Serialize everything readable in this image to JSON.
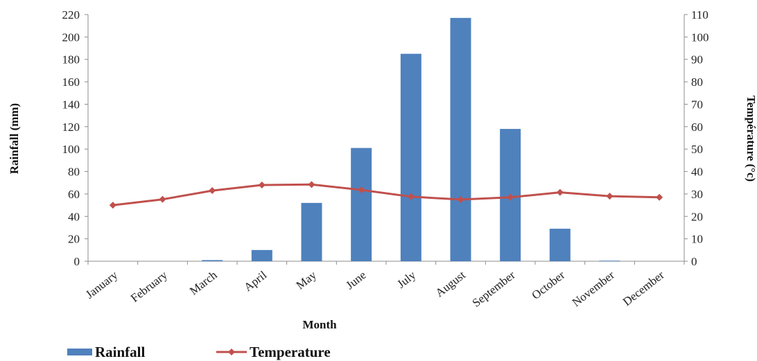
{
  "chart_data": {
    "type": "bar+line",
    "xlabel": "Month",
    "categories": [
      "January",
      "February",
      "March",
      "April",
      "May",
      "June",
      "July",
      "August",
      "September",
      "October",
      "November",
      "December"
    ],
    "y_left": {
      "label": "Rainfall (mm)",
      "min": 0,
      "max": 220,
      "step": 20
    },
    "y_right": {
      "label": "Température (°c)",
      "min": 0,
      "max": 110,
      "step": 10
    },
    "series": [
      {
        "name": "Rainfall",
        "type": "bar",
        "axis": "left",
        "color": "#4f81bd",
        "values": [
          0,
          0,
          1,
          10,
          52,
          101,
          185,
          217,
          118,
          29,
          0.5,
          0
        ]
      },
      {
        "name": "Temperature",
        "type": "line",
        "axis": "right",
        "color": "#c0504d",
        "marker": "diamond",
        "values": [
          25,
          27.6,
          31.5,
          34,
          34.2,
          31.8,
          28.8,
          27.5,
          28.5,
          30.7,
          29,
          28.5
        ]
      }
    ],
    "grid": false,
    "legend": {
      "position": "bottom-left",
      "entries": [
        "Rainfall",
        "Temperature"
      ]
    }
  }
}
